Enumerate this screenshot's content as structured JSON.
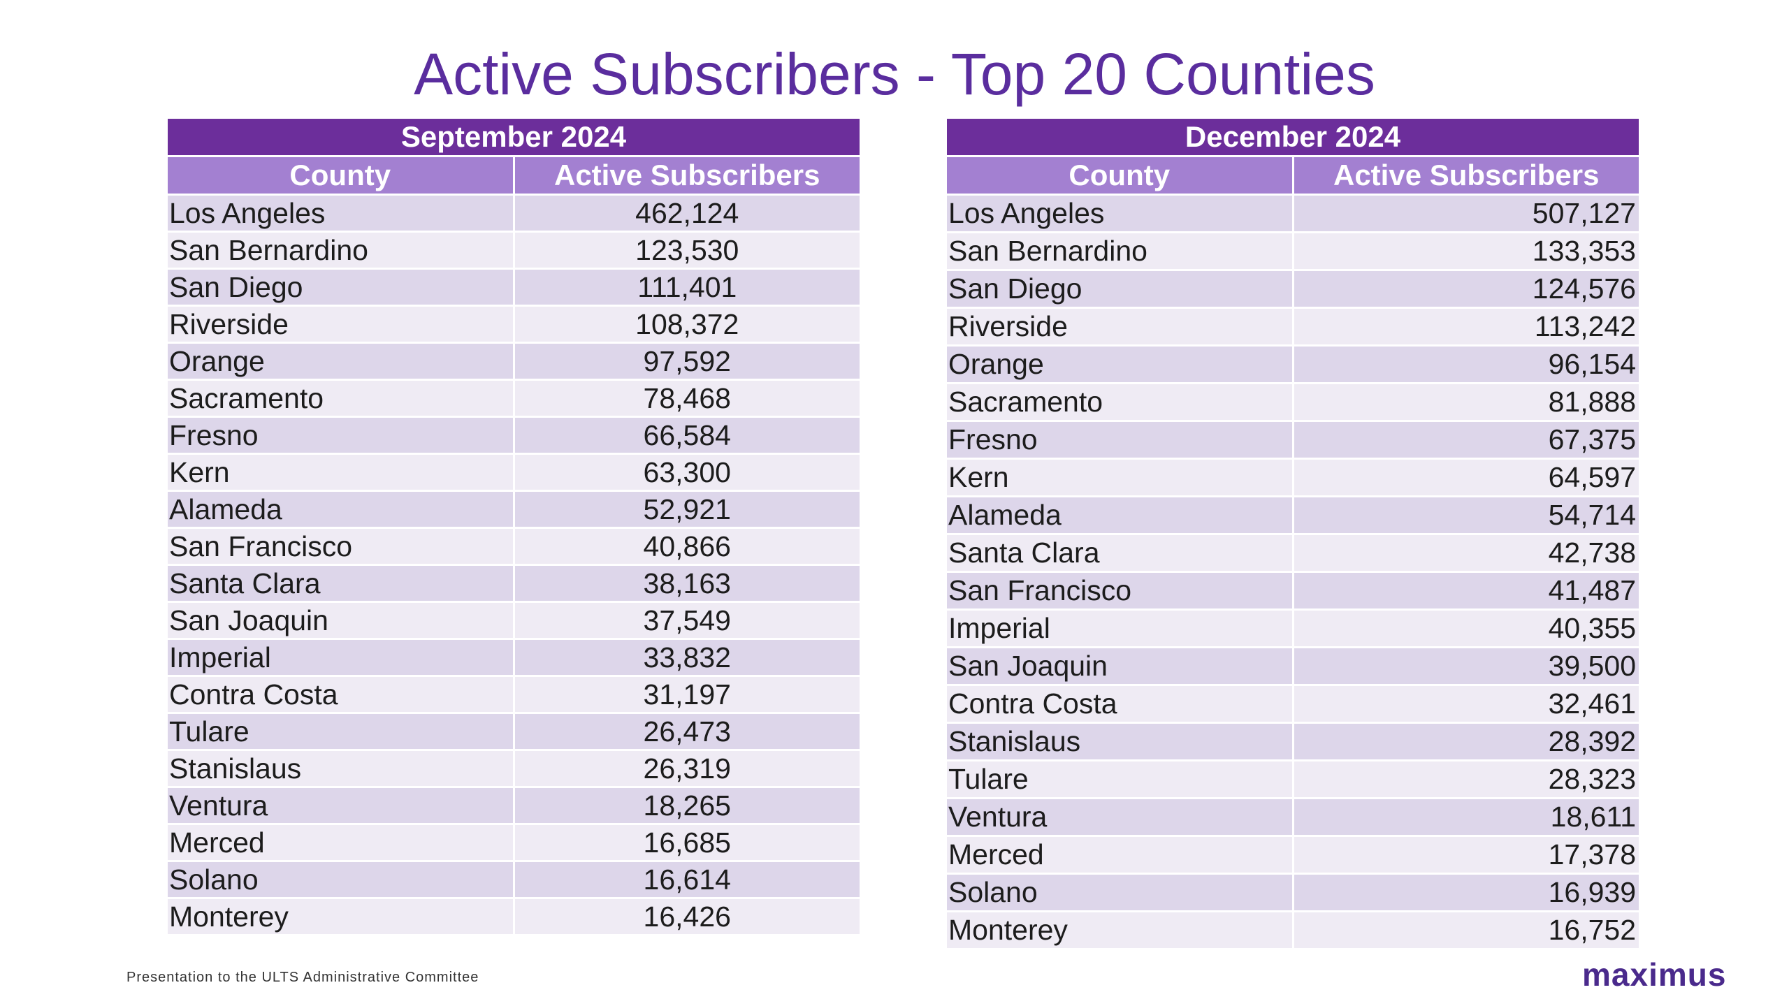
{
  "title": "Active Subscribers - Top 20 Counties",
  "tables": [
    {
      "period": "September 2024",
      "columns": [
        "County",
        "Active Subscribers"
      ],
      "rows": [
        [
          "Los Angeles",
          "462,124"
        ],
        [
          "San Bernardino",
          "123,530"
        ],
        [
          "San Diego",
          "111,401"
        ],
        [
          "Riverside",
          "108,372"
        ],
        [
          "Orange",
          "97,592"
        ],
        [
          "Sacramento",
          "78,468"
        ],
        [
          "Fresno",
          "66,584"
        ],
        [
          "Kern",
          "63,300"
        ],
        [
          "Alameda",
          "52,921"
        ],
        [
          "San Francisco",
          "40,866"
        ],
        [
          "Santa Clara",
          "38,163"
        ],
        [
          "San Joaquin",
          "37,549"
        ],
        [
          "Imperial",
          "33,832"
        ],
        [
          "Contra Costa",
          "31,197"
        ],
        [
          "Tulare",
          "26,473"
        ],
        [
          "Stanislaus",
          "26,319"
        ],
        [
          "Ventura",
          "18,265"
        ],
        [
          "Merced",
          "16,685"
        ],
        [
          "Solano",
          "16,614"
        ],
        [
          "Monterey",
          "16,426"
        ]
      ]
    },
    {
      "period": "December 2024",
      "columns": [
        "County",
        "Active Subscribers"
      ],
      "rows": [
        [
          "Los Angeles",
          "507,127"
        ],
        [
          "San Bernardino",
          "133,353"
        ],
        [
          "San Diego",
          "124,576"
        ],
        [
          "Riverside",
          "113,242"
        ],
        [
          "Orange",
          "96,154"
        ],
        [
          "Sacramento",
          "81,888"
        ],
        [
          "Fresno",
          "67,375"
        ],
        [
          "Kern",
          "64,597"
        ],
        [
          "Alameda",
          "54,714"
        ],
        [
          "Santa Clara",
          "42,738"
        ],
        [
          "San Francisco",
          "41,487"
        ],
        [
          "Imperial",
          "40,355"
        ],
        [
          "San Joaquin",
          "39,500"
        ],
        [
          "Contra Costa",
          "32,461"
        ],
        [
          "Stanislaus",
          "28,392"
        ],
        [
          "Tulare",
          "28,323"
        ],
        [
          "Ventura",
          "18,611"
        ],
        [
          "Merced",
          "17,378"
        ],
        [
          "Solano",
          "16,939"
        ],
        [
          "Monterey",
          "16,752"
        ]
      ]
    }
  ],
  "footer": {
    "text": "Presentation to the ULTS Administrative Committee",
    "logo": "maximus"
  },
  "colors": {
    "title": "#5a2d9e",
    "period_header": "#6c2e9b",
    "column_header": "#a380d1",
    "row_dark": "#ddd6ea",
    "row_light": "#efebf4",
    "logo": "#4a2a8c"
  }
}
